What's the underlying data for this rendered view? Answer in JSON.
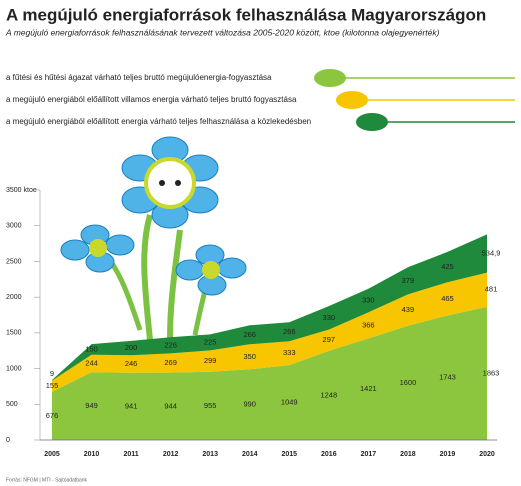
{
  "chart_data": {
    "type": "stacked-area",
    "title": "A megújuló energiaforrások felhasználása Magyarországon",
    "subtitle": "A megújuló energiaforrások felhasználásának tervezett változása 2005-2020 között, ktoe (kilotonna olajegyenérték)",
    "source": "Forrás: NFGM | MTI - Sajtóadatbank",
    "categories": [
      "2005",
      "2010",
      "2011",
      "2012",
      "2013",
      "2014",
      "2015",
      "2016",
      "2017",
      "2018",
      "2019",
      "2020"
    ],
    "series": [
      {
        "name": "a fűtési és hűtési ágazat várható teljes bruttó megújulóenergia-fogyasztása",
        "color": "#8cc63f",
        "values": [
          676,
          949,
          941,
          944,
          955,
          990,
          1049,
          1248,
          1421,
          1600,
          1743,
          1863
        ]
      },
      {
        "name": "a megújuló energiából előállított villamos energia várható teljes bruttó fogyasztása",
        "color": "#f7c600",
        "values": [
          155,
          244,
          246,
          269,
          299,
          350,
          333,
          297,
          366,
          439,
          465,
          481
        ]
      },
      {
        "name": "a megújuló energiából előállított energia várható teljes felhasználása a közlekedésben",
        "color": "#1f8a3b",
        "values": [
          9,
          150,
          200,
          226,
          225,
          266,
          266,
          330,
          330,
          379,
          425,
          534.9
        ],
        "value_labels": [
          "9",
          "150",
          "200",
          "226",
          "225",
          "266",
          "266",
          "330",
          "330",
          "379",
          "425",
          "534,9"
        ]
      }
    ],
    "ylim": [
      0,
      3500
    ],
    "yticks": [
      0,
      500,
      1000,
      1500,
      2000,
      2500,
      3000,
      {
        "value": 3500,
        "label": "3500 ktoe"
      }
    ]
  }
}
